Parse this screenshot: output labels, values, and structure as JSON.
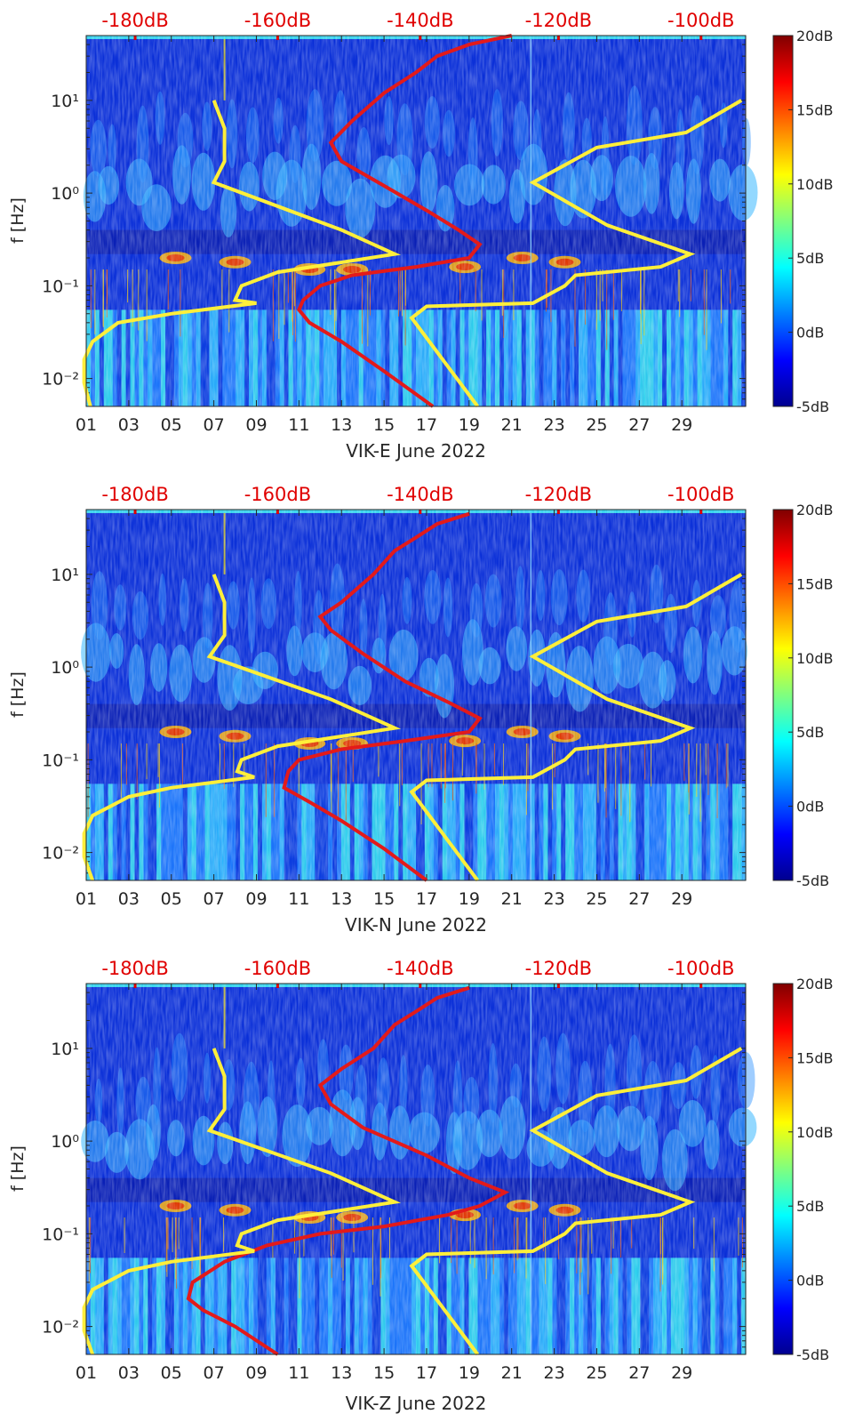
{
  "chart_data": [
    {
      "type": "heatmap",
      "id": "east",
      "xlabel": "VIK-E June 2022",
      "ylabel": "f [Hz]",
      "x_ticks": [
        "01",
        "03",
        "05",
        "07",
        "09",
        "11",
        "13",
        "15",
        "17",
        "19",
        "21",
        "23",
        "25",
        "27",
        "29"
      ],
      "x_tick_days": [
        1,
        3,
        5,
        7,
        9,
        11,
        13,
        15,
        17,
        19,
        21,
        23,
        25,
        27,
        29
      ],
      "xlim": [
        1,
        32
      ],
      "y_scale": "log",
      "ylim": [
        0.005,
        50
      ],
      "y_ticks": [
        "10⁻²",
        "10⁻¹",
        "10⁰",
        "10¹"
      ],
      "y_tick_values": [
        0.01,
        0.1,
        1,
        10
      ],
      "top_axis_labels": [
        "-180dB",
        "-160dB",
        "-140dB",
        "-120dB",
        "-100dB"
      ],
      "top_axis_days": [
        3.3,
        10.0,
        16.7,
        23.2,
        29.9
      ],
      "colorbar": {
        "ticks": [
          "20dB",
          "15dB",
          "10dB",
          "5dB",
          "0dB",
          "-5dB"
        ],
        "tick_values": [
          20,
          15,
          10,
          5,
          0,
          -5
        ],
        "range": [
          -5,
          20
        ]
      },
      "red_curve": [
        [
          21,
          50
        ],
        [
          19,
          40
        ],
        [
          17.5,
          30
        ],
        [
          16.5,
          20
        ],
        [
          15,
          12
        ],
        [
          13.5,
          6
        ],
        [
          12.5,
          3.5
        ],
        [
          13,
          2.2
        ],
        [
          15,
          1.2
        ],
        [
          17,
          0.65
        ],
        [
          18.5,
          0.4
        ],
        [
          19.5,
          0.28
        ],
        [
          19,
          0.2
        ],
        [
          16.5,
          0.16
        ],
        [
          13.5,
          0.13
        ],
        [
          12,
          0.1
        ],
        [
          11.2,
          0.07
        ],
        [
          11,
          0.055
        ],
        [
          11.5,
          0.04
        ],
        [
          13,
          0.025
        ],
        [
          15,
          0.012
        ],
        [
          17.3,
          0.005
        ]
      ],
      "yellow_curve_left": [
        [
          1.2,
          0.005
        ],
        [
          0.9,
          0.009
        ],
        [
          0.9,
          0.016
        ],
        [
          1.3,
          0.025
        ],
        [
          2.5,
          0.04
        ],
        [
          5,
          0.05
        ],
        [
          9,
          0.065
        ],
        [
          8,
          0.07
        ],
        [
          8.3,
          0.1
        ],
        [
          10,
          0.14
        ],
        [
          15.5,
          0.22
        ],
        [
          13,
          0.4
        ],
        [
          7,
          1.3
        ],
        [
          7.5,
          2.2
        ],
        [
          7.5,
          5
        ],
        [
          7,
          10
        ]
      ],
      "yellow_curve_right": [
        [
          19.4,
          0.005
        ],
        [
          16.3,
          0.045
        ],
        [
          17,
          0.06
        ],
        [
          22,
          0.065
        ],
        [
          23.5,
          0.1
        ],
        [
          24,
          0.13
        ],
        [
          28,
          0.16
        ],
        [
          29.4,
          0.22
        ],
        [
          25.5,
          0.45
        ],
        [
          22,
          1.3
        ],
        [
          25,
          3.1
        ],
        [
          29.2,
          4.5
        ],
        [
          31.8,
          10
        ]
      ]
    },
    {
      "type": "heatmap",
      "id": "north",
      "xlabel": "VIK-N June 2022",
      "ylabel": "f [Hz]",
      "x_ticks": [
        "01",
        "03",
        "05",
        "07",
        "09",
        "11",
        "13",
        "15",
        "17",
        "19",
        "21",
        "23",
        "25",
        "27",
        "29"
      ],
      "x_tick_days": [
        1,
        3,
        5,
        7,
        9,
        11,
        13,
        15,
        17,
        19,
        21,
        23,
        25,
        27,
        29
      ],
      "xlim": [
        1,
        32
      ],
      "y_scale": "log",
      "ylim": [
        0.005,
        50
      ],
      "y_ticks": [
        "10⁻²",
        "10⁻¹",
        "10⁰",
        "10¹"
      ],
      "y_tick_values": [
        0.01,
        0.1,
        1,
        10
      ],
      "top_axis_labels": [
        "-180dB",
        "-160dB",
        "-140dB",
        "-120dB",
        "-100dB"
      ],
      "top_axis_days": [
        3.3,
        10.0,
        16.7,
        23.2,
        29.9
      ],
      "colorbar": {
        "ticks": [
          "20dB",
          "15dB",
          "10dB",
          "5dB",
          "0dB",
          "-5dB"
        ],
        "tick_values": [
          20,
          15,
          10,
          5,
          0,
          -5
        ],
        "range": [
          -5,
          20
        ]
      },
      "red_curve": [
        [
          19,
          45
        ],
        [
          17.5,
          35
        ],
        [
          16.5,
          25
        ],
        [
          15.5,
          18
        ],
        [
          14.5,
          10
        ],
        [
          13,
          5
        ],
        [
          12,
          3.5
        ],
        [
          12.5,
          2.5
        ],
        [
          14,
          1.4
        ],
        [
          16,
          0.7
        ],
        [
          18,
          0.42
        ],
        [
          19.5,
          0.28
        ],
        [
          19,
          0.2
        ],
        [
          16,
          0.16
        ],
        [
          13,
          0.13
        ],
        [
          11,
          0.1
        ],
        [
          10.5,
          0.075
        ],
        [
          10.3,
          0.05
        ],
        [
          11.5,
          0.035
        ],
        [
          13,
          0.022
        ],
        [
          15,
          0.011
        ],
        [
          17,
          0.005
        ]
      ],
      "yellow_curve_left": [
        [
          1.3,
          0.005
        ],
        [
          0.9,
          0.009
        ],
        [
          0.9,
          0.016
        ],
        [
          1.3,
          0.025
        ],
        [
          3,
          0.04
        ],
        [
          5,
          0.05
        ],
        [
          8.9,
          0.065
        ],
        [
          8.1,
          0.075
        ],
        [
          8.3,
          0.1
        ],
        [
          10,
          0.14
        ],
        [
          15.5,
          0.22
        ],
        [
          12.5,
          0.45
        ],
        [
          6.8,
          1.3
        ],
        [
          7.5,
          2.2
        ],
        [
          7.5,
          5
        ],
        [
          7,
          10
        ]
      ],
      "yellow_curve_right": [
        [
          19.4,
          0.005
        ],
        [
          16.3,
          0.045
        ],
        [
          17,
          0.06
        ],
        [
          22,
          0.065
        ],
        [
          23.5,
          0.1
        ],
        [
          24,
          0.13
        ],
        [
          28,
          0.16
        ],
        [
          29.4,
          0.22
        ],
        [
          25.5,
          0.45
        ],
        [
          22,
          1.3
        ],
        [
          25,
          3.1
        ],
        [
          29.2,
          4.5
        ],
        [
          31.8,
          10
        ]
      ]
    },
    {
      "type": "heatmap",
      "id": "vertical",
      "xlabel": "VIK-Z June 2022",
      "ylabel": "f [Hz]",
      "x_ticks": [
        "01",
        "03",
        "05",
        "07",
        "09",
        "11",
        "13",
        "15",
        "17",
        "19",
        "21",
        "23",
        "25",
        "27",
        "29"
      ],
      "x_tick_days": [
        1,
        3,
        5,
        7,
        9,
        11,
        13,
        15,
        17,
        19,
        21,
        23,
        25,
        27,
        29
      ],
      "xlim": [
        1,
        32
      ],
      "y_scale": "log",
      "ylim": [
        0.005,
        50
      ],
      "y_ticks": [
        "10⁻²",
        "10⁻¹",
        "10⁰",
        "10¹"
      ],
      "y_tick_values": [
        0.01,
        0.1,
        1,
        10
      ],
      "top_axis_labels": [
        "-180dB",
        "-160dB",
        "-140dB",
        "-120dB",
        "-100dB"
      ],
      "top_axis_days": [
        3.3,
        10.0,
        16.7,
        23.2,
        29.9
      ],
      "colorbar": {
        "ticks": [
          "20dB",
          "15dB",
          "10dB",
          "5dB",
          "0dB",
          "-5dB"
        ],
        "tick_values": [
          20,
          15,
          10,
          5,
          0,
          -5
        ],
        "range": [
          -5,
          20
        ]
      },
      "red_curve": [
        [
          19,
          45
        ],
        [
          17.5,
          35
        ],
        [
          16.5,
          25
        ],
        [
          15.5,
          18
        ],
        [
          14.5,
          10
        ],
        [
          13,
          6
        ],
        [
          12,
          4
        ],
        [
          12.5,
          2.5
        ],
        [
          14,
          1.4
        ],
        [
          17,
          0.7
        ],
        [
          19,
          0.4
        ],
        [
          20.7,
          0.28
        ],
        [
          19.5,
          0.2
        ],
        [
          18,
          0.16
        ],
        [
          15,
          0.12
        ],
        [
          12,
          0.1
        ],
        [
          9.5,
          0.075
        ],
        [
          7.5,
          0.05
        ],
        [
          6,
          0.03
        ],
        [
          5.8,
          0.02
        ],
        [
          6.5,
          0.015
        ],
        [
          8,
          0.01
        ],
        [
          10,
          0.005
        ]
      ],
      "yellow_curve_left": [
        [
          1.3,
          0.005
        ],
        [
          0.9,
          0.009
        ],
        [
          0.9,
          0.016
        ],
        [
          1.3,
          0.025
        ],
        [
          3,
          0.04
        ],
        [
          5,
          0.05
        ],
        [
          8.9,
          0.065
        ],
        [
          8.1,
          0.075
        ],
        [
          8.3,
          0.1
        ],
        [
          10,
          0.14
        ],
        [
          15.5,
          0.22
        ],
        [
          12.5,
          0.45
        ],
        [
          6.8,
          1.3
        ],
        [
          7.5,
          2.2
        ],
        [
          7.5,
          5
        ],
        [
          7,
          10
        ]
      ],
      "yellow_curve_right": [
        [
          19.4,
          0.005
        ],
        [
          16.3,
          0.045
        ],
        [
          17,
          0.06
        ],
        [
          22,
          0.065
        ],
        [
          23.5,
          0.1
        ],
        [
          24,
          0.13
        ],
        [
          28,
          0.16
        ],
        [
          29.4,
          0.22
        ],
        [
          25.5,
          0.45
        ],
        [
          22,
          1.3
        ],
        [
          25,
          3.1
        ],
        [
          29.2,
          4.5
        ],
        [
          31.8,
          10
        ]
      ]
    }
  ]
}
